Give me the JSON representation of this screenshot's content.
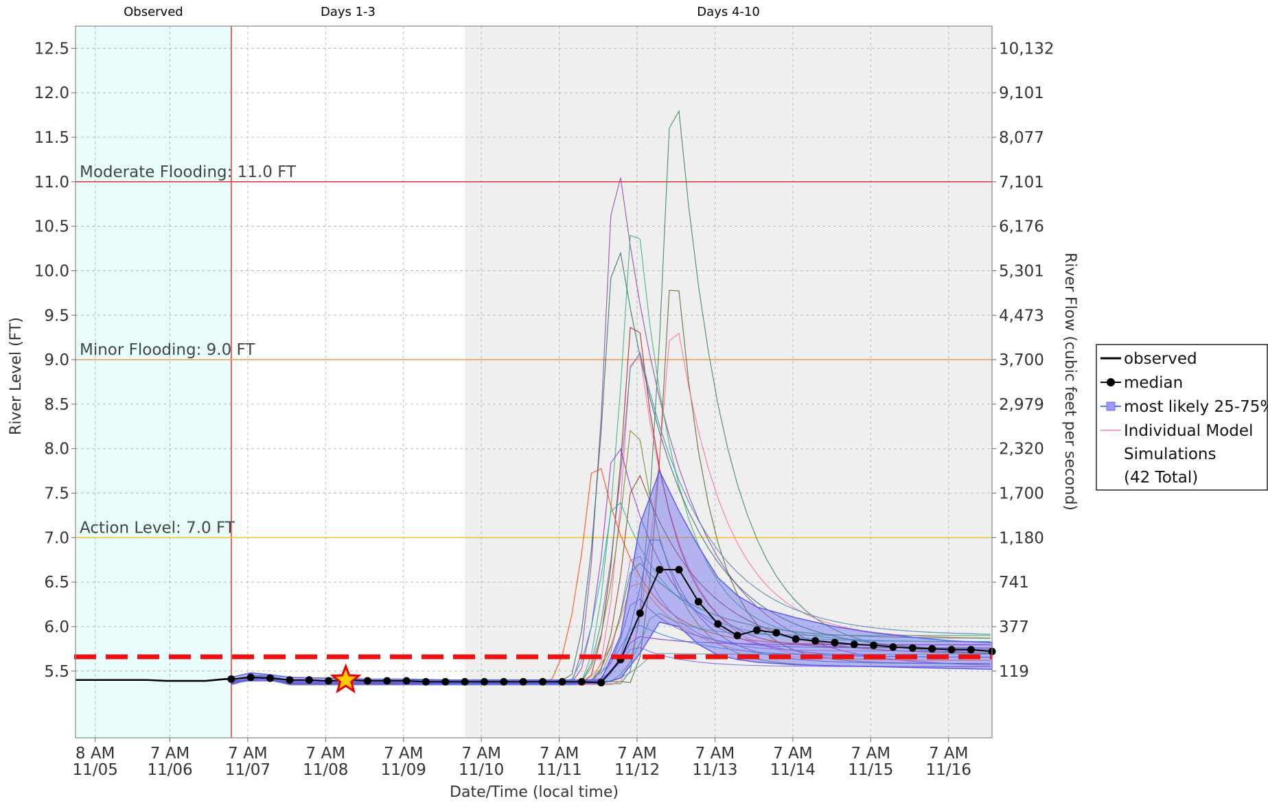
{
  "chart_data": {
    "type": "line",
    "title": "",
    "xlabel": "Date/Time (local time)",
    "ylabel": "River Level (FT)",
    "y2label": "River Flow (cubic feet per second)",
    "ylim": [
      4.75,
      12.75
    ],
    "y_ticks": [
      5.5,
      6.0,
      6.5,
      7.0,
      7.5,
      8.0,
      8.5,
      9.0,
      9.5,
      10.0,
      10.5,
      11.0,
      11.5,
      12.0,
      12.5
    ],
    "y_tick_labels": [
      "5.5",
      "6.0",
      "6.5",
      "7.0",
      "7.5",
      "8.0",
      "8.5",
      "9.0",
      "9.5",
      "10.0",
      "10.5",
      "11.0",
      "11.5",
      "12.0",
      "12.5"
    ],
    "y2_ticks": [
      {
        "stage": 5.5,
        "label": "119"
      },
      {
        "stage": 6.0,
        "label": "377"
      },
      {
        "stage": 6.5,
        "label": "741"
      },
      {
        "stage": 7.0,
        "label": "1,180"
      },
      {
        "stage": 7.5,
        "label": "1,700"
      },
      {
        "stage": 8.0,
        "label": "2,320"
      },
      {
        "stage": 8.5,
        "label": "2,979"
      },
      {
        "stage": 9.0,
        "label": "3,700"
      },
      {
        "stage": 9.5,
        "label": "4,473"
      },
      {
        "stage": 10.0,
        "label": "5,301"
      },
      {
        "stage": 10.5,
        "label": "6,176"
      },
      {
        "stage": 11.0,
        "label": "7,101"
      },
      {
        "stage": 11.5,
        "label": "8,077"
      },
      {
        "stage": 12.0,
        "label": "9,101"
      },
      {
        "stage": 12.5,
        "label": "10,132"
      }
    ],
    "x_unit": "days after 11/05 00:00",
    "xlim": [
      0.08,
      11.85
    ],
    "x_ticks": [
      {
        "x": 0.333,
        "l1": "8 AM",
        "l2": "11/05"
      },
      {
        "x": 1.292,
        "l1": "7 AM",
        "l2": "11/06"
      },
      {
        "x": 2.292,
        "l1": "7 AM",
        "l2": "11/07"
      },
      {
        "x": 3.292,
        "l1": "7 AM",
        "l2": "11/08"
      },
      {
        "x": 4.292,
        "l1": "7 AM",
        "l2": "11/09"
      },
      {
        "x": 5.292,
        "l1": "7 AM",
        "l2": "11/10"
      },
      {
        "x": 6.292,
        "l1": "7 AM",
        "l2": "11/11"
      },
      {
        "x": 7.292,
        "l1": "7 AM",
        "l2": "11/12"
      },
      {
        "x": 8.292,
        "l1": "7 AM",
        "l2": "11/13"
      },
      {
        "x": 9.292,
        "l1": "7 AM",
        "l2": "11/14"
      },
      {
        "x": 10.292,
        "l1": "7 AM",
        "l2": "11/15"
      },
      {
        "x": 11.292,
        "l1": "7 AM",
        "l2": "11/16"
      }
    ],
    "segments": [
      {
        "label": "Observed",
        "x0": 0.08,
        "x1": 2.08,
        "color": "#e8fcfc"
      },
      {
        "label": "Days 1-3",
        "x0": 2.08,
        "x1": 5.08,
        "color": "#ffffff"
      },
      {
        "label": "Days 4-10",
        "x0": 5.08,
        "x1": 11.85,
        "color": "#efefef"
      }
    ],
    "forecast_start_x": 2.08,
    "thresholds": [
      {
        "label": "Moderate Flooding: 11.0 FT",
        "value": 11.0,
        "color": "#e63c3c"
      },
      {
        "label": "Minor Flooding: 9.0 FT",
        "value": 9.0,
        "color": "#f0a050"
      },
      {
        "label": "Action Level: 7.0 FT",
        "value": 7.0,
        "color": "#f0c830"
      }
    ],
    "reference_line": {
      "value": 5.66,
      "color": "#ee1111"
    },
    "marker_star": {
      "x": 3.55,
      "y": 5.4
    },
    "observed": {
      "x": [
        0.08,
        0.5,
        1.0,
        1.25,
        1.5,
        1.75,
        2.0,
        2.08
      ],
      "y": [
        5.4,
        5.4,
        5.4,
        5.39,
        5.39,
        5.39,
        5.41,
        5.41
      ]
    },
    "median": {
      "x": [
        2.08,
        2.33,
        2.58,
        2.83,
        3.08,
        3.33,
        3.58,
        3.83,
        4.08,
        4.33,
        4.58,
        4.83,
        5.08,
        5.33,
        5.58,
        5.83,
        6.08,
        6.33,
        6.58,
        6.83,
        7.08,
        7.33,
        7.58,
        7.83,
        8.08,
        8.33,
        8.58,
        8.83,
        9.08,
        9.33,
        9.58,
        9.83,
        10.08,
        10.33,
        10.58,
        10.83,
        11.08,
        11.33,
        11.58,
        11.85
      ],
      "y": [
        5.41,
        5.43,
        5.42,
        5.4,
        5.4,
        5.39,
        5.4,
        5.39,
        5.39,
        5.39,
        5.38,
        5.38,
        5.38,
        5.38,
        5.38,
        5.38,
        5.38,
        5.38,
        5.38,
        5.37,
        5.63,
        6.15,
        6.64,
        6.64,
        6.28,
        6.03,
        5.9,
        5.96,
        5.93,
        5.86,
        5.84,
        5.82,
        5.8,
        5.79,
        5.77,
        5.76,
        5.75,
        5.74,
        5.74,
        5.72
      ]
    },
    "band_25_75": {
      "x": [
        2.08,
        2.33,
        2.58,
        2.83,
        3.33,
        3.83,
        4.33,
        4.83,
        5.33,
        5.83,
        6.33,
        6.58,
        6.83,
        7.08,
        7.33,
        7.58,
        7.83,
        8.08,
        8.33,
        8.58,
        8.83,
        9.33,
        9.83,
        10.33,
        10.83,
        11.33,
        11.85
      ],
      "low": [
        5.39,
        5.39,
        5.39,
        5.38,
        5.38,
        5.37,
        5.37,
        5.36,
        5.36,
        5.36,
        5.36,
        5.36,
        5.36,
        5.42,
        5.7,
        6.05,
        6.0,
        5.8,
        5.68,
        5.63,
        5.6,
        5.57,
        5.56,
        5.55,
        5.54,
        5.53,
        5.52
      ],
      "high": [
        5.43,
        5.48,
        5.46,
        5.43,
        5.42,
        5.41,
        5.41,
        5.4,
        5.4,
        5.4,
        5.4,
        5.4,
        5.4,
        5.9,
        7.15,
        7.75,
        7.3,
        6.9,
        6.55,
        6.35,
        6.22,
        6.1,
        6.0,
        5.93,
        5.88,
        5.84,
        5.82
      ]
    },
    "simulations_total": 42,
    "simulations": [
      {
        "color": "#8e44ad",
        "peak_x": 7.0,
        "peak": 11.6
      },
      {
        "color": "#2e8b57",
        "peak_x": 7.75,
        "peak": 12.6
      },
      {
        "color": "#3cb371",
        "peak_x": 7.25,
        "peak": 11.1
      },
      {
        "color": "#556b2f",
        "peak_x": 7.75,
        "peak": 10.6
      },
      {
        "color": "#2f6f6f",
        "peak_x": 7.0,
        "peak": 10.65
      },
      {
        "color": "#ff6f8f",
        "peak_x": 7.75,
        "peak": 9.75
      },
      {
        "color": "#ff69b4",
        "peak_x": 7.25,
        "peak": 9.6
      },
      {
        "color": "#b22222",
        "peak_x": 7.25,
        "peak": 10.0
      },
      {
        "color": "#4682b4",
        "peak_x": 7.25,
        "peak": 9.4
      },
      {
        "color": "#9932cc",
        "peak_x": 7.0,
        "peak": 8.3
      },
      {
        "color": "#ff4500",
        "peak_x": 6.75,
        "peak": 8.1
      },
      {
        "color": "#6b8e23",
        "peak_x": 7.25,
        "peak": 8.6
      },
      {
        "color": "#8b4513",
        "peak_x": 7.25,
        "peak": 7.9
      },
      {
        "color": "#20b2aa",
        "peak_x": 7.0,
        "peak": 7.6
      },
      {
        "color": "#4169e1",
        "peak_x": 7.5,
        "peak": 7.2
      },
      {
        "color": "#9370db",
        "peak_x": 7.25,
        "peak": 7.0
      },
      {
        "color": "#2e8b57",
        "peak_x": 7.25,
        "peak": 6.8
      },
      {
        "color": "#ff7f50",
        "peak_x": 7.25,
        "peak": 6.6
      },
      {
        "color": "#6a5acd",
        "peak_x": 7.25,
        "peak": 6.4
      },
      {
        "color": "#3cb371",
        "peak_x": 7.5,
        "peak": 6.2
      },
      {
        "color": "#1e90ff",
        "peak_x": 7.25,
        "peak": 6.05
      },
      {
        "color": "#8a2be2",
        "peak_x": 7.25,
        "peak": 5.9
      },
      {
        "color": "#7b68ee",
        "peak_x": 7.25,
        "peak": 5.8
      },
      {
        "color": "#5f9ea0",
        "peak_x": 7.5,
        "peak": 5.7
      }
    ],
    "legend": [
      {
        "label": "observed",
        "style": "line-black"
      },
      {
        "label": "median",
        "style": "line-dot"
      },
      {
        "label": "most likely 25-75%",
        "style": "band"
      },
      {
        "label": "Individual Model Simulations (42 Total)",
        "lines": [
          "Individual Model",
          "Simulations",
          "(42 Total)"
        ],
        "style": "line-pink"
      }
    ],
    "grid": true,
    "legend_position": "right"
  }
}
